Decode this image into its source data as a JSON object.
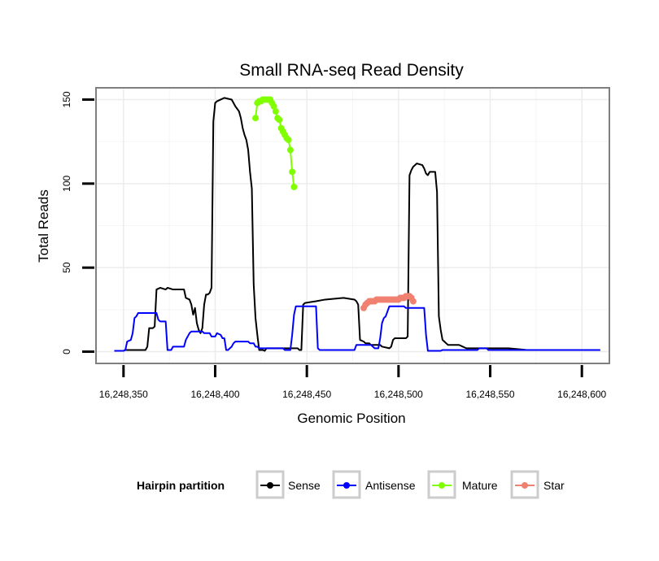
{
  "chart_data": {
    "type": "line",
    "title": "Small RNA-seq Read Density",
    "xlabel": "Genomic Position",
    "ylabel": "Total Reads",
    "xlim": [
      16248335,
      16248615
    ],
    "ylim": [
      -7,
      157
    ],
    "xticks": [
      16248350,
      16248400,
      16248450,
      16248500,
      16248550,
      16248600
    ],
    "xtick_labels": [
      "16,248,350",
      "16,248,400",
      "16,248,450",
      "16,248,500",
      "16,248,550",
      "16,248,600"
    ],
    "yticks": [
      0,
      50,
      100,
      150
    ],
    "ytick_labels": [
      "0",
      "50",
      "100",
      "150"
    ],
    "grid": true,
    "legend": {
      "title": "Hairpin partition",
      "position": "bottom",
      "entries": [
        "Sense",
        "Antisense",
        "Mature",
        "Star"
      ]
    },
    "series": [
      {
        "name": "Sense",
        "color": "#000000",
        "marker": false,
        "points": [
          [
            16248345,
            0.5
          ],
          [
            16248350,
            0.5
          ],
          [
            16248351,
            1
          ],
          [
            16248362,
            1
          ],
          [
            16248363,
            3
          ],
          [
            16248364,
            14
          ],
          [
            16248366,
            14
          ],
          [
            16248367,
            15
          ],
          [
            16248368,
            37
          ],
          [
            16248370,
            38
          ],
          [
            16248373,
            37
          ],
          [
            16248374,
            38
          ],
          [
            16248377,
            37
          ],
          [
            16248383,
            37
          ],
          [
            16248384,
            32
          ],
          [
            16248386,
            31
          ],
          [
            16248387,
            28
          ],
          [
            16248388,
            22
          ],
          [
            16248389,
            26
          ],
          [
            16248390,
            17
          ],
          [
            16248391,
            13
          ],
          [
            16248392,
            11
          ],
          [
            16248393,
            14
          ],
          [
            16248394,
            28
          ],
          [
            16248395,
            34
          ],
          [
            16248396,
            34
          ],
          [
            16248397,
            35
          ],
          [
            16248398,
            38
          ],
          [
            16248399,
            137
          ],
          [
            16248400,
            148
          ],
          [
            16248401,
            149
          ],
          [
            16248403,
            150
          ],
          [
            16248405,
            151
          ],
          [
            16248409,
            150
          ],
          [
            16248410,
            148
          ],
          [
            16248411,
            146
          ],
          [
            16248413,
            143
          ],
          [
            16248414,
            139
          ],
          [
            16248415,
            133
          ],
          [
            16248416,
            129
          ],
          [
            16248417,
            126
          ],
          [
            16248418,
            120
          ],
          [
            16248419,
            107
          ],
          [
            16248420,
            97
          ],
          [
            16248421,
            40
          ],
          [
            16248422,
            20
          ],
          [
            16248423,
            10
          ],
          [
            16248424,
            1
          ],
          [
            16248426,
            1
          ],
          [
            16248427,
            0.5
          ],
          [
            16248428,
            2
          ],
          [
            16248429,
            2
          ],
          [
            16248430,
            2
          ],
          [
            16248436,
            2
          ],
          [
            16248445,
            2
          ],
          [
            16248446,
            1
          ],
          [
            16248447,
            1
          ],
          [
            16248448,
            28
          ],
          [
            16248449,
            29
          ],
          [
            16248455,
            30
          ],
          [
            16248460,
            31
          ],
          [
            16248470,
            32
          ],
          [
            16248476,
            31
          ],
          [
            16248477,
            30
          ],
          [
            16248478,
            28
          ],
          [
            16248479,
            7
          ],
          [
            16248481,
            6
          ],
          [
            16248482,
            5
          ],
          [
            16248484,
            5
          ],
          [
            16248485,
            4
          ],
          [
            16248490,
            4
          ],
          [
            16248491,
            3
          ],
          [
            16248495,
            2
          ],
          [
            16248496,
            3
          ],
          [
            16248497,
            7
          ],
          [
            16248498,
            8
          ],
          [
            16248504,
            8
          ],
          [
            16248505,
            9
          ],
          [
            16248506,
            105
          ],
          [
            16248507,
            108
          ],
          [
            16248508,
            110
          ],
          [
            16248510,
            112
          ],
          [
            16248513,
            111
          ],
          [
            16248514,
            109
          ],
          [
            16248515,
            106
          ],
          [
            16248516,
            105
          ],
          [
            16248517,
            107
          ],
          [
            16248520,
            107
          ],
          [
            16248521,
            95
          ],
          [
            16248522,
            21
          ],
          [
            16248523,
            13
          ],
          [
            16248524,
            7
          ],
          [
            16248525,
            6
          ],
          [
            16248526,
            5
          ],
          [
            16248527,
            4
          ],
          [
            16248533,
            4
          ],
          [
            16248535,
            3
          ],
          [
            16248537,
            2
          ],
          [
            16248560,
            2
          ],
          [
            16248570,
            1
          ],
          [
            16248590,
            1
          ],
          [
            16248600,
            1
          ],
          [
            16248610,
            1
          ]
        ]
      },
      {
        "name": "Antisense",
        "color": "#0000ff",
        "marker": false,
        "points": [
          [
            16248345,
            0.5
          ],
          [
            16248350,
            0.5
          ],
          [
            16248351,
            1
          ],
          [
            16248352,
            6
          ],
          [
            16248354,
            7
          ],
          [
            16248355,
            11
          ],
          [
            16248356,
            20
          ],
          [
            16248357,
            21
          ],
          [
            16248358,
            23
          ],
          [
            16248368,
            23
          ],
          [
            16248369,
            19
          ],
          [
            16248370,
            18
          ],
          [
            16248373,
            18
          ],
          [
            16248374,
            1
          ],
          [
            16248376,
            1
          ],
          [
            16248377,
            3
          ],
          [
            16248383,
            3
          ],
          [
            16248384,
            7
          ],
          [
            16248385,
            9
          ],
          [
            16248386,
            11
          ],
          [
            16248387,
            12
          ],
          [
            16248393,
            12
          ],
          [
            16248394,
            11
          ],
          [
            16248397,
            11
          ],
          [
            16248398,
            9
          ],
          [
            16248400,
            9
          ],
          [
            16248401,
            11
          ],
          [
            16248403,
            10
          ],
          [
            16248404,
            8
          ],
          [
            16248405,
            8
          ],
          [
            16248406,
            1
          ],
          [
            16248407,
            1
          ],
          [
            16248408,
            2
          ],
          [
            16248409,
            3
          ],
          [
            16248410,
            5
          ],
          [
            16248411,
            6
          ],
          [
            16248418,
            6
          ],
          [
            16248419,
            5
          ],
          [
            16248421,
            5
          ],
          [
            16248422,
            3
          ],
          [
            16248423,
            3
          ],
          [
            16248424,
            2
          ],
          [
            16248437,
            2
          ],
          [
            16248438,
            1
          ],
          [
            16248441,
            1
          ],
          [
            16248442,
            10
          ],
          [
            16248443,
            22
          ],
          [
            16248444,
            27
          ],
          [
            16248455,
            27
          ],
          [
            16248456,
            2
          ],
          [
            16248457,
            1
          ],
          [
            16248461,
            1
          ],
          [
            16248476,
            1
          ],
          [
            16248477,
            4
          ],
          [
            16248485,
            4
          ],
          [
            16248486,
            3
          ],
          [
            16248487,
            2
          ],
          [
            16248489,
            2
          ],
          [
            16248490,
            8
          ],
          [
            16248491,
            17
          ],
          [
            16248492,
            20
          ],
          [
            16248493,
            21
          ],
          [
            16248494,
            24
          ],
          [
            16248495,
            27
          ],
          [
            16248503,
            27
          ],
          [
            16248504,
            26
          ],
          [
            16248514,
            26
          ],
          [
            16248515,
            10
          ],
          [
            16248516,
            0.5
          ],
          [
            16248523,
            0.5
          ],
          [
            16248524,
            1
          ],
          [
            16248543,
            1
          ],
          [
            16248544,
            2
          ],
          [
            16248548,
            2
          ],
          [
            16248549,
            1
          ],
          [
            16248555,
            1
          ],
          [
            16248610,
            1
          ]
        ]
      },
      {
        "name": "Mature",
        "color": "#7fff00",
        "marker": true,
        "points": [
          [
            16248422,
            139
          ],
          [
            16248423,
            148
          ],
          [
            16248424,
            149
          ],
          [
            16248425,
            149
          ],
          [
            16248426,
            150
          ],
          [
            16248427,
            150
          ],
          [
            16248428,
            150
          ],
          [
            16248429,
            150
          ],
          [
            16248430,
            150
          ],
          [
            16248431,
            148
          ],
          [
            16248432,
            146
          ],
          [
            16248433,
            143
          ],
          [
            16248434,
            139
          ],
          [
            16248435,
            138
          ],
          [
            16248436,
            133
          ],
          [
            16248437,
            131
          ],
          [
            16248438,
            129
          ],
          [
            16248439,
            127
          ],
          [
            16248440,
            126
          ],
          [
            16248441,
            120
          ],
          [
            16248442,
            107
          ],
          [
            16248443,
            98
          ]
        ]
      },
      {
        "name": "Star",
        "color": "#f08070",
        "marker": true,
        "points": [
          [
            16248481,
            26
          ],
          [
            16248482,
            28
          ],
          [
            16248483,
            29
          ],
          [
            16248484,
            30
          ],
          [
            16248485,
            30
          ],
          [
            16248486,
            30
          ],
          [
            16248487,
            30
          ],
          [
            16248488,
            31
          ],
          [
            16248489,
            31
          ],
          [
            16248490,
            31
          ],
          [
            16248491,
            31
          ],
          [
            16248492,
            31
          ],
          [
            16248493,
            31
          ],
          [
            16248494,
            31
          ],
          [
            16248495,
            31
          ],
          [
            16248496,
            31
          ],
          [
            16248497,
            31
          ],
          [
            16248498,
            31
          ],
          [
            16248499,
            31
          ],
          [
            16248500,
            31
          ],
          [
            16248501,
            32
          ],
          [
            16248502,
            32
          ],
          [
            16248503,
            32
          ],
          [
            16248504,
            33
          ],
          [
            16248505,
            33
          ],
          [
            16248506,
            33
          ],
          [
            16248507,
            32
          ],
          [
            16248508,
            30
          ]
        ]
      }
    ]
  }
}
